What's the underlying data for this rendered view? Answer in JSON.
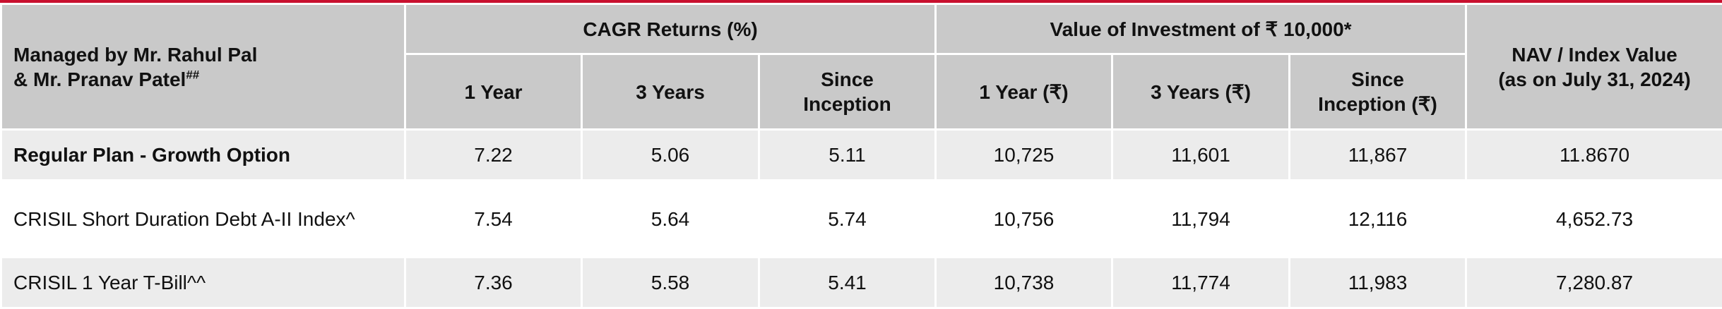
{
  "header": {
    "managed_by": [
      "Managed by Mr. Rahul Pal",
      "& Mr. Pranav Patel"
    ],
    "managed_by_sup": "##",
    "groups": [
      "CAGR Returns (%)",
      "Value of Investment of ₹ 10,000*"
    ],
    "nav": [
      "NAV / Index Value",
      "(as on July 31, 2024)"
    ],
    "columns": [
      "1 Year",
      "3 Years",
      "Since Inception",
      "1 Year (₹)",
      "3 Years (₹)",
      "Since Inception (₹)"
    ]
  },
  "table": {
    "rows": [
      [
        "Regular Plan - Growth Option",
        "7.22",
        "5.06",
        "5.11",
        "10,725",
        "11,601",
        "11,867",
        "11.8670"
      ],
      [
        "CRISIL Short Duration Debt A-II Index^",
        "7.54",
        "5.64",
        "5.74",
        "10,756",
        "11,794",
        "12,116",
        "4,652.73"
      ],
      [
        "CRISIL 1 Year T-Bill^^",
        "7.36",
        "5.58",
        "5.41",
        "10,738",
        "11,774",
        "11,983",
        "7,280.87"
      ]
    ]
  }
}
